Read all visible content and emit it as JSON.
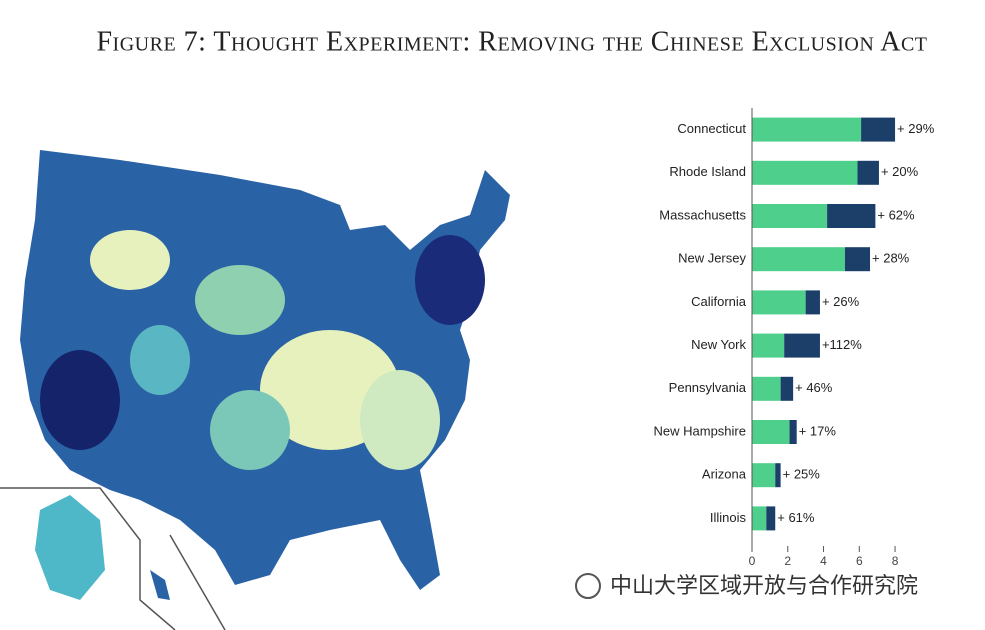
{
  "chart_data": {
    "type": "stacked-barh",
    "title": "Figure 7: Thought Experiment: Removing the Chinese Exclusion Act",
    "categories": [
      "Connecticut",
      "Rhode Island",
      "Massachusetts",
      "New Jersey",
      "California",
      "New York",
      "Pennsylvania",
      "New Hampshire",
      "Arizona",
      "Illinois"
    ],
    "series": [
      {
        "color": "#4fcf8c",
        "values": [
          6.1,
          5.9,
          4.2,
          5.2,
          3.0,
          1.8,
          1.6,
          2.1,
          1.3,
          0.8
        ]
      },
      {
        "color": "#1c3f6a",
        "values": [
          1.9,
          1.2,
          2.7,
          1.4,
          0.8,
          2.0,
          0.7,
          0.4,
          0.3,
          0.5
        ]
      }
    ],
    "annotations": [
      "+ 29%",
      "+ 20%",
      "+ 62%",
      "+ 28%",
      "+ 26%",
      "+112%",
      "+ 46%",
      "+ 17%",
      "+ 25%",
      "+ 61%"
    ],
    "xlim": [
      0,
      8.5
    ],
    "xticks": [
      0,
      2,
      4,
      6,
      8
    ]
  },
  "watermark": "中山大学区域开放与合作研究院"
}
